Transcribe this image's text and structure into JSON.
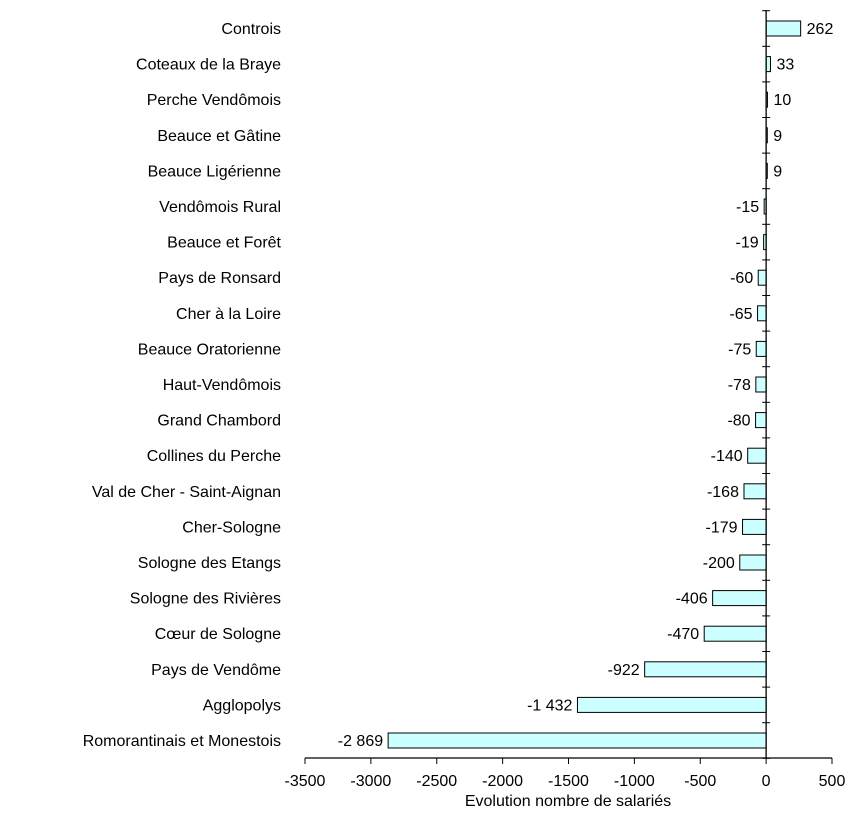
{
  "chart_data": {
    "type": "bar",
    "orientation": "horizontal",
    "categories": [
      "Controis",
      "Coteaux de la Braye",
      "Perche Vendômois",
      "Beauce et Gâtine",
      "Beauce Ligérienne",
      "Vendômois Rural",
      "Beauce et Forêt",
      "Pays de Ronsard",
      "Cher à la Loire",
      "Beauce Oratorienne",
      "Haut-Vendômois",
      "Grand Chambord",
      "Collines du Perche",
      "Val de Cher - Saint-Aignan",
      "Cher-Sologne",
      "Sologne des Etangs",
      "Sologne des Rivières",
      "Cœur de Sologne",
      "Pays de Vendôme",
      "Agglopolys",
      "Romorantinais et  Monestois"
    ],
    "values": [
      262,
      33,
      10,
      9,
      9,
      -15,
      -19,
      -60,
      -65,
      -75,
      -78,
      -80,
      -140,
      -168,
      -179,
      -200,
      -406,
      -470,
      -922,
      -1432,
      -2869
    ],
    "value_labels": [
      "262",
      "33",
      "10",
      "9",
      "9",
      "-15",
      "-19",
      "-60",
      "-65",
      "-75",
      "-78",
      "-80",
      "-140",
      "-168",
      "-179",
      "-200",
      "-406",
      "-470",
      "-922",
      "-1 432",
      "-2 869"
    ],
    "xlabel": "Evolution nombre de salariés",
    "xlim": [
      -3500,
      500
    ],
    "xticks": [
      -3500,
      -3000,
      -2500,
      -2000,
      -1500,
      -1000,
      -500,
      0,
      500
    ],
    "xtick_labels": [
      "-3500",
      "-3000",
      "-2500",
      "-2000",
      "-1500",
      "-1000",
      "-500",
      "0",
      "500"
    ],
    "grid": false,
    "legend": "none",
    "bar_color": "#ccffff",
    "bar_edge_color": "#000000"
  }
}
